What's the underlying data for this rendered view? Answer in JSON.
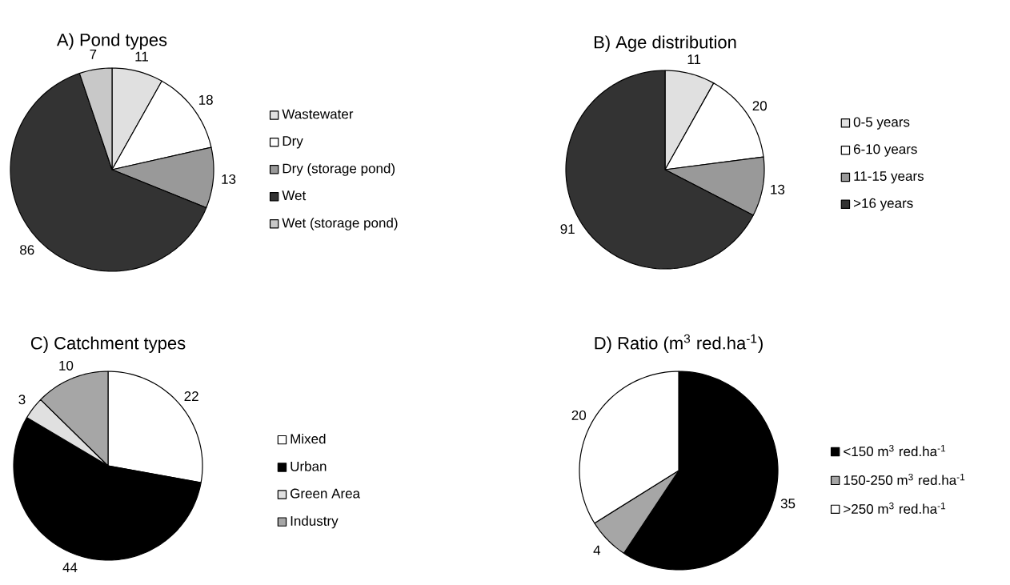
{
  "chart_data": [
    {
      "type": "pie",
      "title": "A) Pond types",
      "categories": [
        "Wastewater",
        "Dry",
        "Dry (storage pond)",
        "Wet",
        "Wet (storage pond)"
      ],
      "values": [
        11,
        18,
        13,
        86,
        7
      ],
      "colors": [
        "#e0e0e0",
        "#ffffff",
        "#999999",
        "#333333",
        "#c8c8c8"
      ],
      "data_labels": true,
      "legend": "right"
    },
    {
      "type": "pie",
      "title": "B) Age distribution",
      "categories": [
        "0-5 years",
        "6-10 years",
        "11-15 years",
        ">16 years"
      ],
      "values": [
        11,
        20,
        13,
        91
      ],
      "colors": [
        "#e0e0e0",
        "#ffffff",
        "#999999",
        "#333333"
      ],
      "data_labels": true,
      "legend": "right"
    },
    {
      "type": "pie",
      "title": "C) Catchment types",
      "categories": [
        "Mixed",
        "Urban",
        "Green Area",
        "Industry"
      ],
      "values": [
        22,
        44,
        3,
        10
      ],
      "colors": [
        "#ffffff",
        "#000000",
        "#e0e0e0",
        "#a6a6a6"
      ],
      "data_labels": true,
      "legend": "right"
    },
    {
      "type": "pie",
      "title": "D) Ratio (m$^{3}$ red.ha$^{-1}$)",
      "categories": [
        "<150 m$^{3}$ red.ha$^{-1}$",
        "150-250 m$^{3}$ red.ha$^{-1}$",
        ">250 m$^{3}$ red.ha$^{-1}$"
      ],
      "values": [
        35,
        4,
        20
      ],
      "colors": [
        "#000000",
        "#a6a6a6",
        "#ffffff"
      ],
      "data_labels": true,
      "legend": "right"
    }
  ]
}
